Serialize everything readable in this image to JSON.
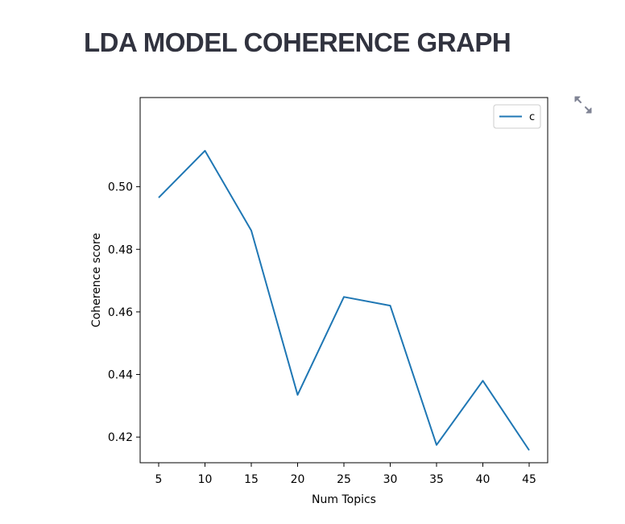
{
  "page": {
    "title": "LDA MODEL COHERENCE GRAPH",
    "fullscreen_icon": "expand-arrows-icon"
  },
  "chart_data": {
    "type": "line",
    "title": "",
    "xlabel": "Num Topics",
    "ylabel": "Coherence score",
    "x": [
      5,
      10,
      15,
      20,
      25,
      30,
      35,
      40,
      45
    ],
    "series": [
      {
        "name": "c",
        "values": [
          0.4965,
          0.5115,
          0.486,
          0.4335,
          0.4648,
          0.462,
          0.4175,
          0.438,
          0.4158
        ],
        "color": "#1f77b4"
      }
    ],
    "xticks": [
      5,
      10,
      15,
      20,
      25,
      30,
      35,
      40,
      45
    ],
    "yticks": [
      0.42,
      0.44,
      0.46,
      0.48,
      0.5
    ],
    "ytick_labels": [
      "0.42",
      "0.44",
      "0.46",
      "0.48",
      "0.50"
    ],
    "xlim": [
      3,
      47
    ],
    "ylim": [
      0.4118,
      0.5285
    ],
    "grid": false,
    "legend_position": "top-right"
  }
}
